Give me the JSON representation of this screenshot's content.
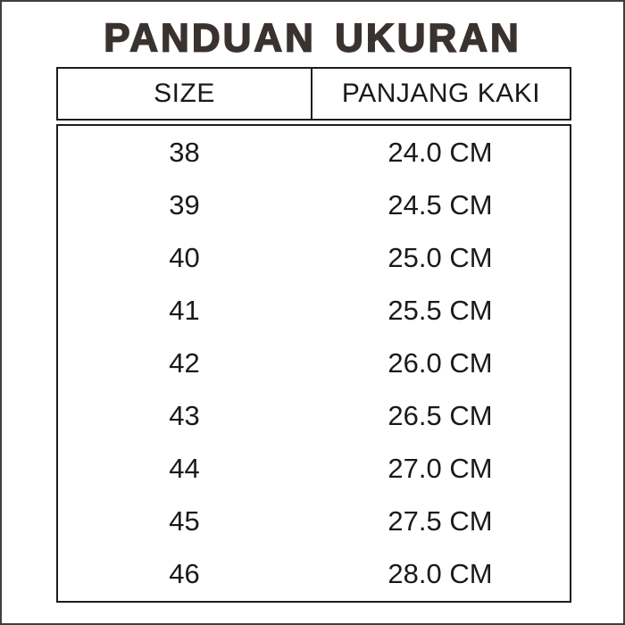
{
  "page": {
    "title": "PANDUAN UKURAN"
  },
  "chart_data": {
    "type": "table",
    "title": "PANDUAN UKURAN",
    "columns": [
      "SIZE",
      "PANJANG KAKI"
    ],
    "rows": [
      [
        "38",
        "24.0 CM"
      ],
      [
        "39",
        "24.5 CM"
      ],
      [
        "40",
        "25.0 CM"
      ],
      [
        "41",
        "25.5 CM"
      ],
      [
        "42",
        "26.0 CM"
      ],
      [
        "43",
        "26.5 CM"
      ],
      [
        "44",
        "27.0 CM"
      ],
      [
        "45",
        "27.5 CM"
      ],
      [
        "46",
        "28.0 CM"
      ]
    ],
    "layout": {
      "header_divider_only": true,
      "body_gridlines": false,
      "legend": "none",
      "grid": "off"
    }
  },
  "colors": {
    "title_text": "#3a322e",
    "body_text": "#1a1a1a",
    "table_border": "#1c1c1c",
    "outer_border": "#3f3f3f",
    "background": "#ffffff"
  }
}
